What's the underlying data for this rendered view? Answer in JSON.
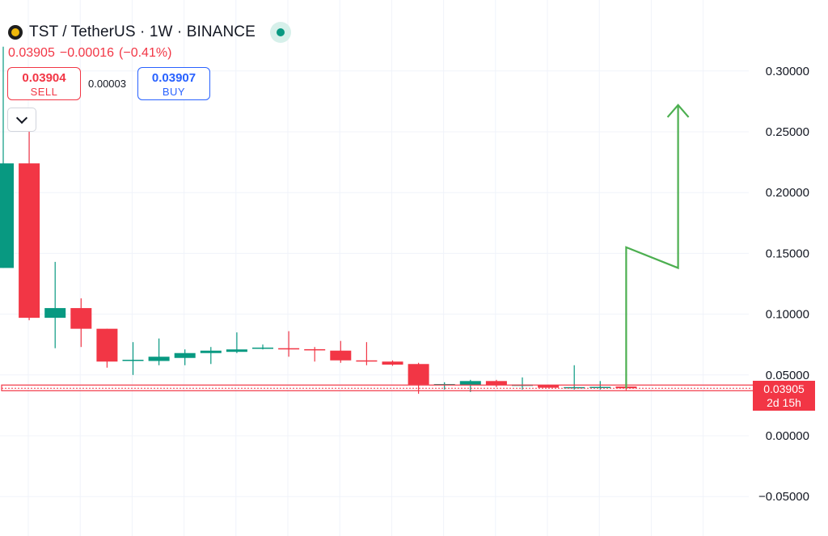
{
  "header": {
    "symbol_title": "TST / TetherUS · 1W · BINANCE",
    "status": "market-open",
    "status_color": "#089981",
    "last_price": "0.03905",
    "change": "−0.00016",
    "change_percent": "(−0.41%)"
  },
  "trade": {
    "sell_price": "0.03904",
    "sell_label": "SELL",
    "spread": "0.00003",
    "buy_price": "0.03907",
    "buy_label": "BUY"
  },
  "price_tag": {
    "price": "0.03905",
    "countdown": "2d 15h"
  },
  "colors": {
    "up": "#089981",
    "down": "#f23645",
    "drawing": "#4caf50",
    "price_line": "#f23645"
  },
  "chart_data": {
    "type": "candlestick",
    "interval": "1W",
    "y_axis": {
      "ticks": [
        "0.30000",
        "0.25000",
        "0.20000",
        "0.15000",
        "0.10000",
        "0.05000",
        "0.00000",
        "−0.05000"
      ],
      "range": [
        -0.07,
        0.335
      ],
      "position": "right"
    },
    "grid": true,
    "last_price": 0.03905,
    "candles": [
      {
        "o": 0.138,
        "h": 0.32,
        "l": 0.138,
        "c": 0.224
      },
      {
        "o": 0.224,
        "h": 0.25,
        "l": 0.095,
        "c": 0.097
      },
      {
        "o": 0.097,
        "h": 0.143,
        "l": 0.072,
        "c": 0.105
      },
      {
        "o": 0.105,
        "h": 0.113,
        "l": 0.073,
        "c": 0.088
      },
      {
        "o": 0.088,
        "h": 0.088,
        "l": 0.056,
        "c": 0.061
      },
      {
        "o": 0.0615,
        "h": 0.077,
        "l": 0.05,
        "c": 0.0625
      },
      {
        "o": 0.0615,
        "h": 0.08,
        "l": 0.058,
        "c": 0.065
      },
      {
        "o": 0.064,
        "h": 0.071,
        "l": 0.058,
        "c": 0.068
      },
      {
        "o": 0.068,
        "h": 0.073,
        "l": 0.059,
        "c": 0.07
      },
      {
        "o": 0.069,
        "h": 0.085,
        "l": 0.068,
        "c": 0.071
      },
      {
        "o": 0.0715,
        "h": 0.075,
        "l": 0.071,
        "c": 0.0725
      },
      {
        "o": 0.072,
        "h": 0.086,
        "l": 0.065,
        "c": 0.071
      },
      {
        "o": 0.0712,
        "h": 0.073,
        "l": 0.061,
        "c": 0.0705
      },
      {
        "o": 0.07,
        "h": 0.078,
        "l": 0.06,
        "c": 0.062
      },
      {
        "o": 0.062,
        "h": 0.077,
        "l": 0.058,
        "c": 0.0615
      },
      {
        "o": 0.061,
        "h": 0.062,
        "l": 0.0575,
        "c": 0.0585
      },
      {
        "o": 0.059,
        "h": 0.06,
        "l": 0.0345,
        "c": 0.042
      },
      {
        "o": 0.0415,
        "h": 0.044,
        "l": 0.038,
        "c": 0.0425
      },
      {
        "o": 0.0415,
        "h": 0.046,
        "l": 0.036,
        "c": 0.045
      },
      {
        "o": 0.045,
        "h": 0.046,
        "l": 0.04,
        "c": 0.0415
      },
      {
        "o": 0.0415,
        "h": 0.048,
        "l": 0.038,
        "c": 0.042
      },
      {
        "o": 0.0415,
        "h": 0.042,
        "l": 0.0395,
        "c": 0.0395
      },
      {
        "o": 0.0395,
        "h": 0.058,
        "l": 0.038,
        "c": 0.04
      },
      {
        "o": 0.0398,
        "h": 0.045,
        "l": 0.038,
        "c": 0.0402
      },
      {
        "o": 0.0405,
        "h": 0.0415,
        "l": 0.0375,
        "c": 0.03905
      }
    ],
    "drawing": {
      "type": "arrow",
      "points": [
        [
          24,
          0.039
        ],
        [
          24,
          0.155
        ],
        [
          26,
          0.138
        ],
        [
          26,
          0.272
        ]
      ]
    }
  }
}
